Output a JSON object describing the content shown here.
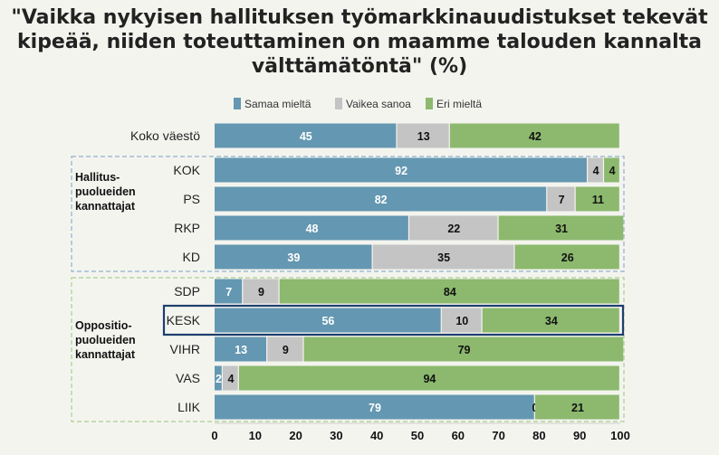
{
  "title_lines": [
    "\"Vaikka nykyisen hallituksen työmarkkinauudistukset tekevät",
    "kipeää, niiden toteuttaminen on maamme talouden kannalta",
    "välttämätöntä\" (%)"
  ],
  "colors": {
    "agree": "#6497b1",
    "unsure": "#c4c4c4",
    "disagree": "#8cb96e",
    "highlight": "#1f3f6e",
    "gov_box": "#8fb0cc",
    "opp_box": "#a9cf8f"
  },
  "group_labels": {
    "government": [
      "Hallitus-",
      "puolueiden",
      "kannattajat"
    ],
    "opposition": [
      "Oppositio-",
      "puolueiden",
      "kannattajat"
    ]
  },
  "chart_data": {
    "type": "bar",
    "orientation": "horizontal",
    "stacked": true,
    "categories": [
      "Koko väestö",
      "KOK",
      "PS",
      "RKP",
      "KD",
      "SDP",
      "KESK",
      "VIHR",
      "VAS",
      "LIIK"
    ],
    "series": [
      {
        "name": "Samaa mieltä",
        "values": [
          45,
          92,
          82,
          48,
          39,
          7,
          56,
          13,
          2,
          79
        ]
      },
      {
        "name": "Vaikea sanoa",
        "values": [
          13,
          4,
          7,
          22,
          35,
          9,
          10,
          9,
          4,
          0
        ]
      },
      {
        "name": "Eri mieltä",
        "values": [
          42,
          4,
          11,
          31,
          26,
          84,
          34,
          79,
          94,
          21
        ]
      }
    ],
    "xlim": [
      0,
      100
    ],
    "xticks": [
      0,
      10,
      20,
      30,
      40,
      50,
      60,
      70,
      80,
      90,
      100
    ],
    "legend_position": "top",
    "highlighted_category": "KESK",
    "groups": [
      {
        "label": "Hallituspuolueiden kannattajat",
        "categories": [
          "KOK",
          "PS",
          "RKP",
          "KD"
        ]
      },
      {
        "label": "Oppositiopuolueiden kannattajat",
        "categories": [
          "SDP",
          "KESK",
          "VIHR",
          "VAS",
          "LIIK"
        ]
      }
    ]
  }
}
